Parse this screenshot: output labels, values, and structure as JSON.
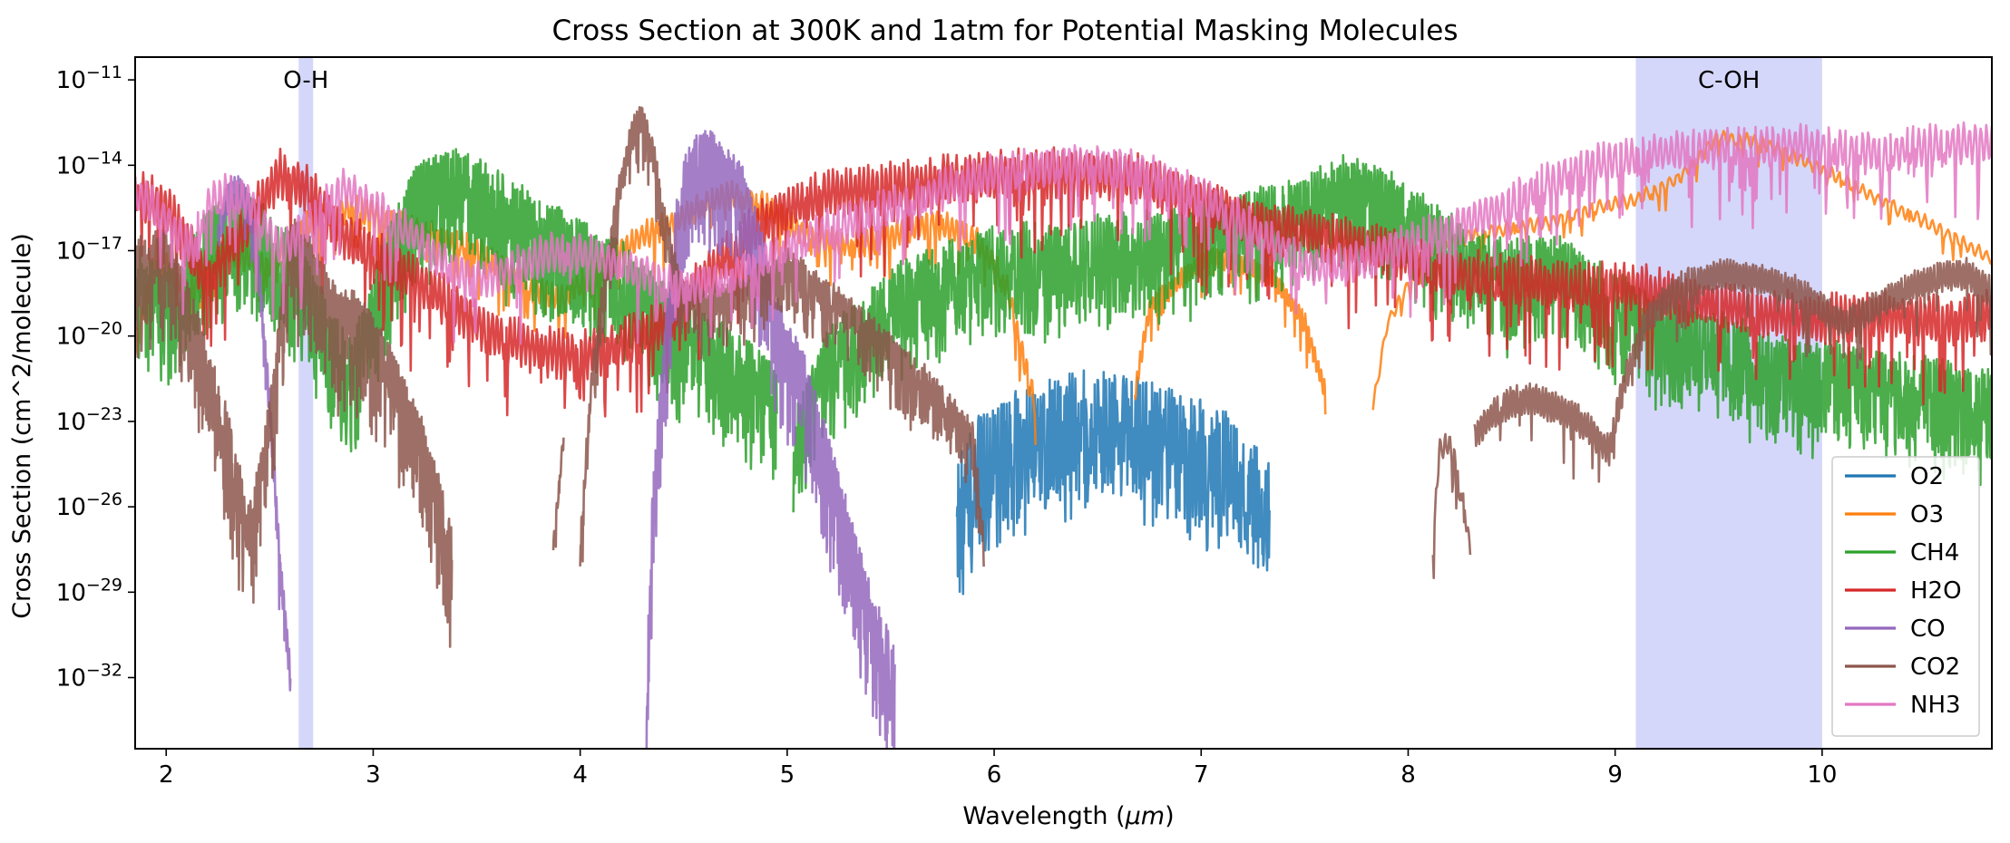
{
  "chart_data": {
    "type": "line",
    "title": "Cross Section at 300K and 1atm for Potential Masking Molecules",
    "xlabel_prefix": "Wavelength (",
    "xlabel_unit": "μm",
    "xlabel_suffix": ")",
    "ylabel": "Cross Section (cm^2/molecule)",
    "xlim": [
      1.85,
      10.82
    ],
    "ylim_log10": [
      -34.5,
      -10.2
    ],
    "yscale": "log",
    "grid": false,
    "legend_position": "bottom-right",
    "x_ticks": [
      2,
      3,
      4,
      5,
      6,
      7,
      8,
      9,
      10
    ],
    "x_tick_labels": [
      "2",
      "3",
      "4",
      "5",
      "6",
      "7",
      "8",
      "9",
      "10"
    ],
    "y_ticks_log10": [
      -32,
      -29,
      -26,
      -23,
      -20,
      -17,
      -14,
      -11
    ],
    "y_tick_base": "10",
    "y_tick_exponents": [
      "−32",
      "−29",
      "−26",
      "−23",
      "−20",
      "−17",
      "−14",
      "−11"
    ],
    "bands": [
      {
        "label": "O-H",
        "x": [
          2.64,
          2.71
        ],
        "color": "#b8bcf6"
      },
      {
        "label": "C-OH",
        "x": [
          9.1,
          10.0
        ],
        "color": "#b8bcf6"
      }
    ],
    "series": [
      {
        "name": "O2",
        "color": "#1f77b4",
        "segments": [
          {
            "x": [
              5.82,
              5.9,
              6.0,
              6.1,
              6.2,
              6.3,
              6.4,
              6.5,
              6.6,
              6.7,
              6.8,
              6.9,
              7.0,
              7.1,
              7.2,
              7.33
            ],
            "y": [
              -25.5,
              -24.0,
              -23.5,
              -23.0,
              -22.8,
              -22.5,
              -22.3,
              -22.2,
              -22.3,
              -22.5,
              -22.8,
              -23.0,
              -23.3,
              -23.6,
              -24.0,
              -25.5
            ],
            "fill": 0.55,
            "amp": 1.5,
            "cycles": 110
          }
        ]
      },
      {
        "name": "O3",
        "color": "#ff7f0e",
        "segments": [
          {
            "x": [
              1.85,
              1.95,
              2.1,
              2.3,
              2.5,
              2.7,
              2.9,
              3.1,
              3.3,
              3.5,
              3.7,
              3.9,
              4.1,
              4.3,
              4.5,
              4.7,
              4.9,
              5.1,
              5.3,
              5.5,
              5.7,
              5.9,
              6.05,
              6.15,
              6.2
            ],
            "y": [
              -20.5,
              -17.0,
              -18.5,
              -17.0,
              -17.5,
              -16.0,
              -15.5,
              -16.0,
              -16.5,
              -17.0,
              -18.0,
              -18.8,
              -17.5,
              -16.5,
              -15.8,
              -15.0,
              -15.5,
              -16.5,
              -16.8,
              -16.5,
              -16.0,
              -16.5,
              -18.0,
              -21.0,
              -22.5
            ],
            "fill": 0.12,
            "amp": 0.7,
            "cycles": 180
          },
          {
            "x": [
              6.68,
              6.75,
              6.9,
              7.05,
              7.2,
              7.35,
              7.5,
              7.6
            ],
            "y": [
              -22.0,
              -19.0,
              -18.0,
              -17.2,
              -17.5,
              -18.0,
              -19.5,
              -22.0
            ],
            "fill": 0.05,
            "amp": 0.5,
            "cycles": 60
          },
          {
            "x": [
              7.83,
              7.9,
              8.1,
              8.3,
              8.5,
              8.7,
              8.9,
              9.1,
              9.3,
              9.5,
              9.7,
              9.9,
              10.1,
              10.3,
              10.5,
              10.7,
              10.82
            ],
            "y": [
              -22.5,
              -19.5,
              -17.0,
              -16.5,
              -16.2,
              -16.0,
              -15.5,
              -15.2,
              -14.5,
              -13.0,
              -13.2,
              -13.8,
              -14.5,
              -15.3,
              -16.0,
              -16.8,
              -17.3
            ],
            "fill": 0.05,
            "amp": 0.35,
            "cycles": 80
          }
        ]
      },
      {
        "name": "CH4",
        "color": "#2ca02c",
        "segments": [
          {
            "x": [
              1.85,
              2.0,
              2.2,
              2.35,
              2.5,
              2.65,
              2.8,
              2.9,
              3.05,
              3.2,
              3.4,
              3.6,
              3.8,
              4.0,
              4.2,
              4.4,
              4.6,
              4.8,
              4.95
            ],
            "y": [
              -17.5,
              -18.5,
              -16.5,
              -15.5,
              -16.5,
              -17.5,
              -20.0,
              -21.0,
              -17.5,
              -14.8,
              -14.3,
              -15.0,
              -16.0,
              -16.8,
              -17.5,
              -19.0,
              -20.0,
              -21.0,
              -22.0
            ],
            "fill": 0.45,
            "amp": 1.3,
            "cycles": 260
          },
          {
            "x": [
              5.03,
              5.2,
              5.4,
              5.6,
              5.8,
              6.0,
              6.3,
              6.6,
              6.9,
              7.2,
              7.5,
              7.7,
              7.9,
              8.1,
              8.3,
              8.5,
              8.7,
              8.9,
              9.1,
              9.3,
              9.5,
              9.7,
              9.9,
              10.1,
              10.3,
              10.5,
              10.82
            ],
            "y": [
              -23.5,
              -20.5,
              -19.0,
              -18.0,
              -17.5,
              -17.0,
              -16.8,
              -16.5,
              -16.2,
              -15.8,
              -15.2,
              -14.5,
              -15.0,
              -16.0,
              -17.0,
              -17.5,
              -17.2,
              -18.0,
              -19.0,
              -19.5,
              -20.0,
              -20.5,
              -21.0,
              -21.0,
              -21.3,
              -21.6,
              -22.0
            ],
            "fill": 0.45,
            "amp": 1.2,
            "cycles": 420
          }
        ]
      },
      {
        "name": "H2O",
        "color": "#d62728",
        "segments": [
          {
            "x": [
              1.85,
              2.0,
              2.2,
              2.4,
              2.55,
              2.7,
              2.85,
              3.0,
              3.2,
              3.4,
              3.6,
              3.8,
              4.0,
              4.2,
              4.4,
              4.6,
              4.8,
              5.0,
              5.2,
              5.5,
              5.8,
              6.1,
              6.4,
              6.7,
              6.9,
              7.1,
              7.3,
              7.6,
              7.9,
              8.2,
              8.5,
              8.8,
              9.1,
              9.4,
              9.7,
              10.0,
              10.3,
              10.6,
              10.82
            ],
            "y": [
              -15.0,
              -15.5,
              -18.0,
              -16.0,
              -14.3,
              -15.0,
              -16.5,
              -17.0,
              -18.0,
              -19.0,
              -20.0,
              -20.5,
              -20.7,
              -20.3,
              -19.5,
              -18.0,
              -16.5,
              -15.5,
              -15.0,
              -14.8,
              -14.5,
              -14.3,
              -14.3,
              -14.5,
              -15.0,
              -15.5,
              -16.0,
              -16.5,
              -17.0,
              -17.8,
              -18.0,
              -18.3,
              -18.3,
              -18.8,
              -19.2,
              -19.4,
              -19.3,
              -19.5,
              -19.2
            ],
            "fill": 0.08,
            "amp": 1.2,
            "cycles": 420
          }
        ]
      },
      {
        "name": "CO",
        "color": "#9467bd",
        "segments": [
          {
            "x": [
              2.25,
              2.3,
              2.35,
              2.4,
              2.45,
              2.5,
              2.55,
              2.6
            ],
            "y": [
              -16.5,
              -15.0,
              -14.8,
              -15.5,
              -18.0,
              -22.5,
              -28.0,
              -32.0
            ],
            "fill": 0.05,
            "amp": 0.8,
            "cycles": 40
          },
          {
            "x": [
              4.32,
              4.35,
              4.4,
              4.45,
              4.5,
              4.55,
              4.6,
              4.65,
              4.7,
              4.75,
              4.8,
              4.85,
              4.9,
              4.95,
              5.0,
              5.05,
              5.1,
              5.2,
              5.3,
              5.4,
              5.52
            ],
            "y": [
              -33.0,
              -26.0,
              -21.0,
              -17.0,
              -14.5,
              -13.8,
              -13.5,
              -13.8,
              -14.0,
              -14.5,
              -15.2,
              -16.5,
              -18.0,
              -19.5,
              -20.5,
              -21.0,
              -22.0,
              -24.5,
              -27.0,
              -29.5,
              -32.0
            ],
            "fill": 0.4,
            "amp": 1.3,
            "cycles": 140
          }
        ]
      },
      {
        "name": "CO2",
        "color": "#8c564b",
        "segments": [
          {
            "x": [
              1.85,
              2.0,
              2.15,
              2.3,
              2.4,
              2.5,
              2.6,
              2.7,
              2.8,
              2.95,
              3.1,
              3.25,
              3.38
            ],
            "y": [
              -17.5,
              -17.0,
              -20.0,
              -23.5,
              -27.0,
              -23.0,
              -16.5,
              -17.5,
              -19.0,
              -19.5,
              -21.5,
              -24.0,
              -27.5
            ],
            "fill": 0.3,
            "amp": 1.3,
            "cycles": 150
          },
          {
            "x": [
              3.87,
              3.92
            ],
            "y": [
              -27.5,
              -23.5
            ],
            "fill": 0.1,
            "amp": 0.5,
            "cycles": 4
          },
          {
            "x": [
              4.0,
              4.05,
              4.1,
              4.15,
              4.2,
              4.25,
              4.3,
              4.35,
              4.4,
              4.45,
              4.5,
              4.6,
              4.8,
              5.0,
              5.1,
              5.2,
              5.35,
              5.5,
              5.7,
              5.9,
              5.95
            ],
            "y": [
              -27.5,
              -22.0,
              -19.0,
              -16.5,
              -14.5,
              -13.0,
              -12.3,
              -13.5,
              -15.5,
              -17.5,
              -18.5,
              -18.8,
              -18.3,
              -17.5,
              -18.0,
              -18.5,
              -19.5,
              -20.5,
              -21.8,
              -23.5,
              -27.5
            ],
            "fill": 0.25,
            "amp": 0.8,
            "cycles": 160
          },
          {
            "x": [
              8.12,
              8.15,
              8.2,
              8.25,
              8.3
            ],
            "y": [
              -27.5,
              -24.0,
              -23.8,
              -25.0,
              -27.5
            ],
            "fill": 0.1,
            "amp": 0.6,
            "cycles": 8
          },
          {
            "x": [
              8.32,
              8.4,
              8.5,
              8.6,
              8.7,
              8.8,
              8.9,
              8.97,
              9.05,
              9.15,
              9.3,
              9.5,
              9.7,
              9.9,
              10.1,
              10.3,
              10.5,
              10.7,
              10.82
            ],
            "y": [
              -23.5,
              -22.8,
              -22.3,
              -22.2,
              -22.5,
              -22.8,
              -23.5,
              -24.0,
              -21.5,
              -19.5,
              -18.3,
              -17.8,
              -18.0,
              -18.5,
              -19.5,
              -18.8,
              -18.0,
              -17.8,
              -18.5
            ],
            "fill": 0.05,
            "amp": 0.8,
            "cycles": 160
          }
        ]
      },
      {
        "name": "NH3",
        "color": "#e377c2",
        "segments": [
          {
            "x": [
              1.85,
              1.95,
              2.1,
              2.25,
              2.4,
              2.55,
              2.7,
              2.85,
              3.0,
              3.2,
              3.4,
              3.55,
              3.7,
              3.9,
              4.1,
              4.3,
              4.5,
              4.7,
              4.9,
              5.1,
              5.3,
              5.5,
              5.7,
              5.9,
              6.1,
              6.3,
              6.5,
              6.7,
              6.9,
              7.1,
              7.3,
              7.5,
              7.7,
              7.9,
              8.1,
              8.3,
              8.5,
              8.7,
              8.9,
              9.1,
              9.3,
              9.5,
              9.7,
              9.9,
              10.1,
              10.3,
              10.5,
              10.82
            ],
            "y": [
              -15.0,
              -15.5,
              -16.8,
              -15.0,
              -15.3,
              -17.0,
              -16.0,
              -14.8,
              -15.5,
              -16.5,
              -17.8,
              -18.0,
              -17.5,
              -17.0,
              -17.2,
              -17.8,
              -18.3,
              -18.0,
              -17.3,
              -16.5,
              -16.0,
              -15.5,
              -15.0,
              -14.5,
              -14.2,
              -14.0,
              -14.0,
              -14.2,
              -14.8,
              -15.5,
              -16.5,
              -17.5,
              -17.5,
              -17.0,
              -16.5,
              -16.0,
              -15.3,
              -14.5,
              -14.0,
              -13.7,
              -13.5,
              -13.4,
              -13.4,
              -13.3,
              -13.5,
              -13.6,
              -13.3,
              -13.2
            ],
            "fill": 0.1,
            "amp": 1.0,
            "cycles": 330
          }
        ]
      }
    ]
  }
}
